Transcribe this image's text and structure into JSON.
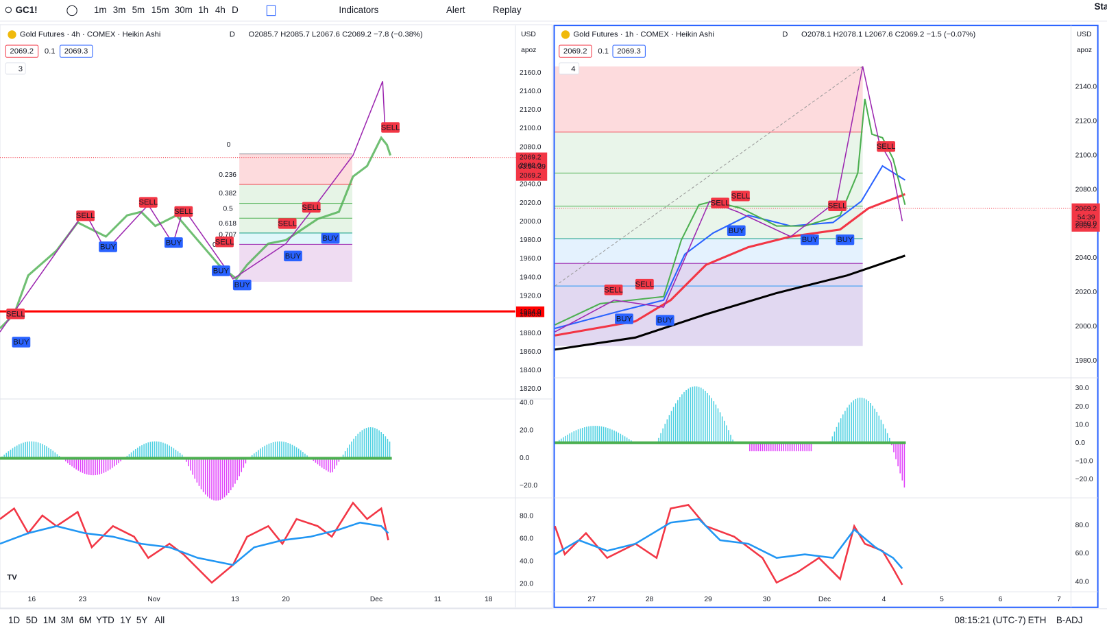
{
  "toolbar": {
    "symbol": "GC1!",
    "intervals": [
      "1m",
      "3m",
      "5m",
      "15m",
      "30m",
      "1h",
      "4h",
      "D"
    ],
    "indicators": "Indicators",
    "alert": "Alert",
    "replay": "Replay",
    "account": "Sta"
  },
  "left_pane": {
    "title": "Gold Futures · 4h · COMEX · Heikin Ashi",
    "badge": "D",
    "open": "O2085.7",
    "high": "H2085.7",
    "low": "L2067.6",
    "close": "C2069.2",
    "change": "−7.8 (−0.38%)",
    "bid": "2069.2",
    "spread": "0.1",
    "ask": "2069.3",
    "indicator_count": "3",
    "currency": "USD",
    "scale_mode": "apoz",
    "price_ticks": [
      "2160.0",
      "2140.0",
      "2120.0",
      "2100.0",
      "2080.0",
      "2060.0",
      "2040.0",
      "2020.0",
      "2000.0",
      "1980.0",
      "1960.0",
      "1940.0",
      "1920.0",
      "1900.0",
      "1880.0",
      "1860.0",
      "1840.0",
      "1820.0"
    ],
    "last_price": "2069.2",
    "countdown": "03:54:39",
    "last_price_2": "2069.2",
    "level_label": "1904.0",
    "fib_levels": [
      "0",
      "0.236",
      "0.382",
      "0.5",
      "0.618",
      "0.707",
      "0"
    ],
    "signals": [
      "SELL",
      "BUY",
      "SELL",
      "BUY",
      "SELL",
      "BUY",
      "SELL",
      "SELL",
      "BUY",
      "BUY",
      "SELL",
      "BUY",
      "SELL",
      "BUY",
      "SELL"
    ],
    "osc_ticks": [
      "40.0",
      "20.0",
      "0.0",
      "−20.0"
    ],
    "rsi_ticks": [
      "80.0",
      "60.0",
      "40.0",
      "20.0"
    ],
    "time_ticks": [
      "16",
      "23",
      "Nov",
      "13",
      "20",
      "Dec",
      "11",
      "18"
    ]
  },
  "right_pane": {
    "title": "Gold Futures · 1h · COMEX · Heikin Ashi",
    "badge": "D",
    "open": "O2078.1",
    "high": "H2078.1",
    "low": "L2067.6",
    "close": "C2069.2",
    "change": "−1.5 (−0.07%)",
    "bid": "2069.2",
    "spread": "0.1",
    "ask": "2069.3",
    "indicator_count": "4",
    "currency": "USD",
    "scale_mode": "apoz",
    "price_ticks": [
      "2140.0",
      "2120.0",
      "2100.0",
      "2080.0",
      "2060.0",
      "2040.0",
      "2020.0",
      "2000.0",
      "1980.0"
    ],
    "last_price": "2069.2",
    "countdown": "54:39",
    "last_price_2": "2069.2",
    "signals": [
      "SELL",
      "BUY",
      "SELL",
      "BUY",
      "SELL",
      "SELL",
      "BUY",
      "BUY",
      "SELL",
      "BUY",
      "SELL"
    ],
    "osc_ticks": [
      "30.0",
      "20.0",
      "10.0",
      "0.0",
      "−10.0",
      "−20.0"
    ],
    "rsi_ticks": [
      "80.0",
      "60.0",
      "40.0"
    ],
    "time_ticks": [
      "27",
      "28",
      "29",
      "30",
      "Dec",
      "4",
      "5",
      "6",
      "7"
    ]
  },
  "bottom_bar": {
    "ranges": [
      "1D",
      "5D",
      "1M",
      "3M",
      "6M",
      "YTD",
      "1Y",
      "5Y",
      "All"
    ],
    "clock": "08:15:21 (UTC-7)",
    "session": "ETH",
    "adjustment": "B-ADJ"
  }
}
